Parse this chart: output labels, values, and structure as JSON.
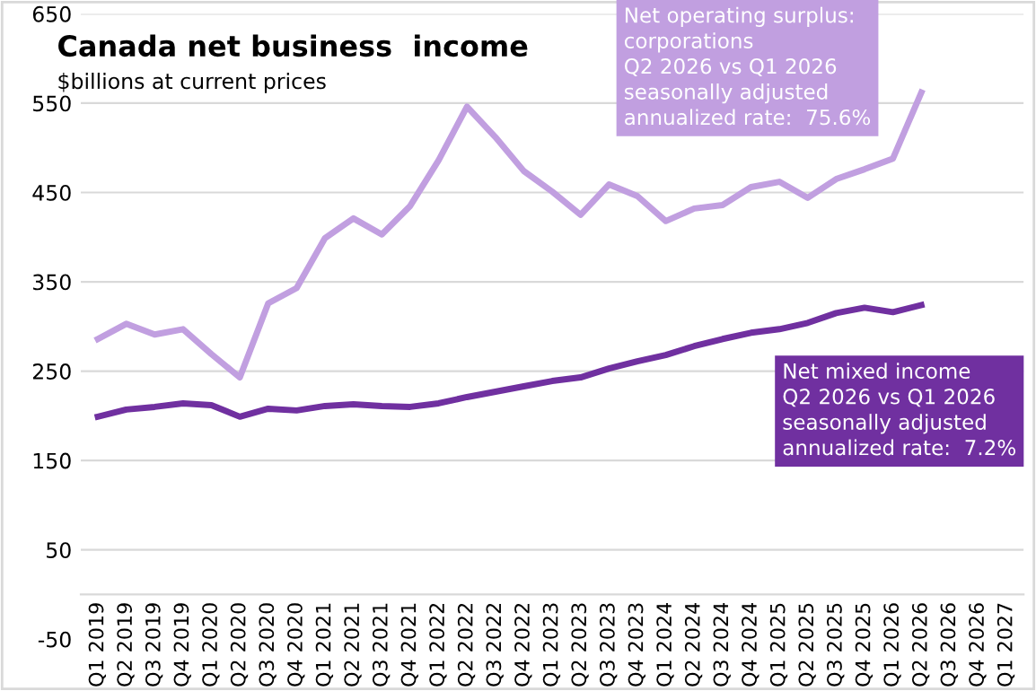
{
  "chart_data": {
    "type": "line",
    "title": "Canada net business  income",
    "subtitle": "$billions at current prices",
    "categories": [
      "Q1 2019",
      "Q2 2019",
      "Q3 2019",
      "Q4 2019",
      "Q1 2020",
      "Q2 2020",
      "Q3 2020",
      "Q4 2020",
      "Q1 2021",
      "Q2 2021",
      "Q3 2021",
      "Q4 2021",
      "Q1 2022",
      "Q2 2022",
      "Q3 2022",
      "Q4 2022",
      "Q1 2023",
      "Q2 2023",
      "Q3 2023",
      "Q4 2023",
      "Q1 2024",
      "Q2 2024",
      "Q3 2024",
      "Q4 2024",
      "Q1 2025",
      "Q2 2025",
      "Q3 2025",
      "Q4 2025",
      "Q1 2026",
      "Q2 2026",
      "Q3 2026",
      "Q4 2026",
      "Q1 2027"
    ],
    "series": [
      {
        "color": "#c19fe0",
        "values": [
          286,
          303,
          291,
          297,
          269,
          243,
          326,
          343,
          399,
          421,
          403,
          435,
          486,
          546,
          512,
          474,
          451,
          425,
          459,
          446,
          418,
          432,
          436,
          456,
          462,
          444,
          465,
          476,
          488,
          562,
          null,
          null,
          null
        ]
      },
      {
        "color": "#7030a0",
        "values": [
          199,
          207,
          210,
          214,
          212,
          199,
          208,
          206,
          211,
          213,
          211,
          210,
          214,
          221,
          227,
          233,
          239,
          243,
          253,
          261,
          268,
          278,
          286,
          293,
          297,
          304,
          315,
          321,
          316,
          324,
          null,
          null,
          null
        ]
      }
    ],
    "annotations": [
      "Net operating surplus:\ncorporations\nQ2 2026 vs Q1 2026\nseasonally adjusted\nannualized rate:  75.6%",
      "Net mixed income\nQ2 2026 vs Q1 2026\nseasonally adjusted\nannualized rate:  7.2%"
    ],
    "ylim": [
      -50,
      650
    ],
    "yticks": [
      -50,
      50,
      150,
      250,
      350,
      450,
      550,
      650
    ],
    "grid": "y",
    "line_style": "solid",
    "marker": "none"
  }
}
